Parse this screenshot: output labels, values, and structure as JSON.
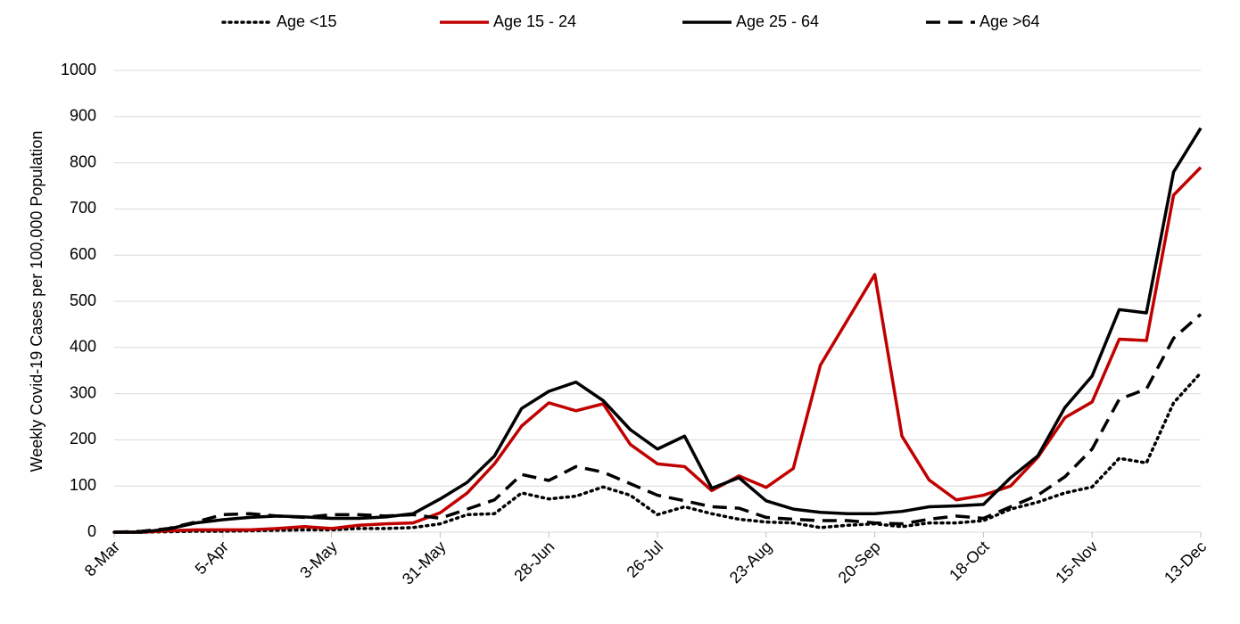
{
  "chart_data": {
    "type": "line",
    "y_label": "Weekly Covid-19 Cases per 100,000 Population",
    "categories": [
      "8-Mar",
      null,
      null,
      null,
      "5-Apr",
      null,
      null,
      null,
      "3-May",
      null,
      null,
      null,
      "31-May",
      null,
      null,
      null,
      "28-Jun",
      null,
      null,
      null,
      "26-Jul",
      null,
      null,
      null,
      "23-Aug",
      null,
      null,
      null,
      "20-Sep",
      null,
      null,
      null,
      "18-Oct",
      null,
      null,
      null,
      "15-Nov",
      null,
      null,
      null,
      "13-Dec"
    ],
    "series": [
      {
        "name": "Age <15",
        "color": "#000000",
        "dash": "dotted",
        "values": [
          0,
          0,
          1,
          2,
          2,
          3,
          4,
          5,
          5,
          8,
          8,
          10,
          18,
          38,
          40,
          85,
          72,
          78,
          98,
          80,
          38,
          55,
          40,
          28,
          22,
          20,
          10,
          15,
          18,
          12,
          20,
          20,
          25,
          50,
          65,
          85,
          98,
          160,
          150,
          280,
          345
        ]
      },
      {
        "name": "Age 15 - 24",
        "color": "#c00000",
        "dash": "solid",
        "values": [
          0,
          0,
          3,
          5,
          5,
          5,
          8,
          12,
          8,
          15,
          18,
          20,
          42,
          85,
          148,
          230,
          280,
          263,
          278,
          190,
          148,
          142,
          90,
          122,
          97,
          138,
          362,
          460,
          558,
          208,
          113,
          70,
          80,
          100,
          162,
          248,
          282,
          418,
          415,
          730,
          790
        ]
      },
      {
        "name": "Age 25 - 64",
        "color": "#000000",
        "dash": "solid",
        "values": [
          0,
          0,
          7,
          20,
          27,
          32,
          35,
          33,
          30,
          30,
          33,
          40,
          72,
          108,
          165,
          268,
          305,
          325,
          285,
          222,
          180,
          208,
          95,
          118,
          68,
          50,
          43,
          40,
          40,
          45,
          55,
          57,
          60,
          118,
          165,
          270,
          338,
          482,
          475,
          780,
          875
        ]
      },
      {
        "name": "Age >64",
        "color": "#000000",
        "dash": "dashed",
        "values": [
          0,
          2,
          8,
          22,
          38,
          40,
          35,
          32,
          38,
          38,
          35,
          38,
          30,
          50,
          70,
          125,
          112,
          142,
          130,
          105,
          80,
          68,
          55,
          52,
          32,
          28,
          25,
          25,
          20,
          18,
          28,
          35,
          30,
          55,
          80,
          120,
          180,
          288,
          310,
          420,
          472
        ]
      }
    ],
    "ylim": [
      0,
      1000
    ],
    "yticks": [
      0,
      100,
      200,
      300,
      400,
      500,
      600,
      700,
      800,
      900,
      1000
    ],
    "grid": true,
    "legend": "top"
  }
}
